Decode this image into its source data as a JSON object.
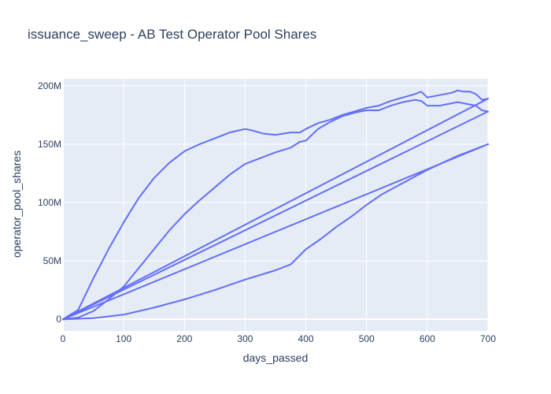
{
  "chart_data": {
    "type": "line",
    "title": "issuance_sweep - AB Test Operator Pool Shares",
    "xlabel": "days_passed",
    "ylabel": "operator_pool_shares",
    "xlim": [
      0,
      700
    ],
    "ylim": [
      -10000000,
      206000000
    ],
    "x_ticks": [
      0,
      100,
      200,
      300,
      400,
      500,
      600,
      700
    ],
    "x_tick_labels": [
      "0",
      "100",
      "200",
      "300",
      "400",
      "500",
      "600",
      "700"
    ],
    "y_ticks": [
      0,
      50000000,
      100000000,
      150000000,
      200000000
    ],
    "y_tick_labels": [
      "0",
      "50M",
      "100M",
      "150M",
      "200M"
    ],
    "grid": true,
    "legend": "none",
    "line_color": "#636efa",
    "background": "#e5ecf6",
    "series": [
      {
        "x": [
          0,
          25,
          50,
          75,
          100,
          125,
          150,
          175,
          200,
          225,
          250,
          275,
          300,
          310,
          330,
          350,
          375,
          390,
          400,
          420,
          440,
          460,
          480,
          500,
          520,
          540,
          560,
          580,
          590,
          600,
          620,
          640,
          650,
          660,
          670,
          680,
          690,
          700
        ],
        "values": [
          0,
          8000000,
          35000000,
          60000000,
          83000000,
          104000000,
          121000000,
          134000000,
          144000000,
          150000000,
          155000000,
          160000000,
          163000000,
          162000000,
          159000000,
          158000000,
          160000000,
          160000000,
          163000000,
          168000000,
          171000000,
          175000000,
          178000000,
          181000000,
          183000000,
          187000000,
          190000000,
          193000000,
          195000000,
          190000000,
          192000000,
          194000000,
          196000000,
          195000000,
          195000000,
          193000000,
          188000000,
          189000000
        ]
      },
      {
        "x": [
          0,
          25,
          50,
          75,
          100,
          125,
          150,
          175,
          200,
          225,
          250,
          275,
          300,
          325,
          350,
          375,
          390,
          400,
          420,
          440,
          460,
          480,
          500,
          520,
          540,
          560,
          580,
          590,
          600,
          620,
          640,
          650,
          660,
          680,
          690,
          700
        ],
        "values": [
          0,
          1500000,
          7000000,
          17000000,
          28000000,
          44000000,
          60000000,
          76000000,
          90000000,
          102000000,
          113000000,
          124000000,
          133000000,
          138000000,
          143000000,
          147000000,
          152000000,
          153000000,
          163000000,
          169000000,
          174000000,
          177000000,
          179000000,
          179000000,
          183000000,
          186000000,
          188000000,
          187000000,
          183000000,
          183000000,
          185000000,
          186000000,
          185000000,
          183000000,
          179000000,
          178000000
        ]
      },
      {
        "x": [
          0,
          700
        ],
        "values": [
          0,
          189000000
        ]
      },
      {
        "x": [
          0,
          700
        ],
        "values": [
          0,
          178000000
        ]
      },
      {
        "x": [
          0,
          700
        ],
        "values": [
          0,
          150000000
        ]
      },
      {
        "x": [
          0,
          50,
          100,
          150,
          200,
          250,
          300,
          350,
          375,
          400,
          425,
          450,
          475,
          500,
          525,
          550,
          575,
          600,
          625,
          650,
          675,
          690,
          700
        ],
        "values": [
          0,
          1000000,
          4000000,
          10000000,
          17000000,
          25000000,
          34000000,
          42000000,
          47000000,
          60000000,
          69000000,
          79000000,
          88000000,
          98000000,
          107000000,
          114000000,
          121000000,
          128000000,
          134000000,
          140000000,
          145000000,
          148000000,
          150000000
        ]
      }
    ]
  }
}
